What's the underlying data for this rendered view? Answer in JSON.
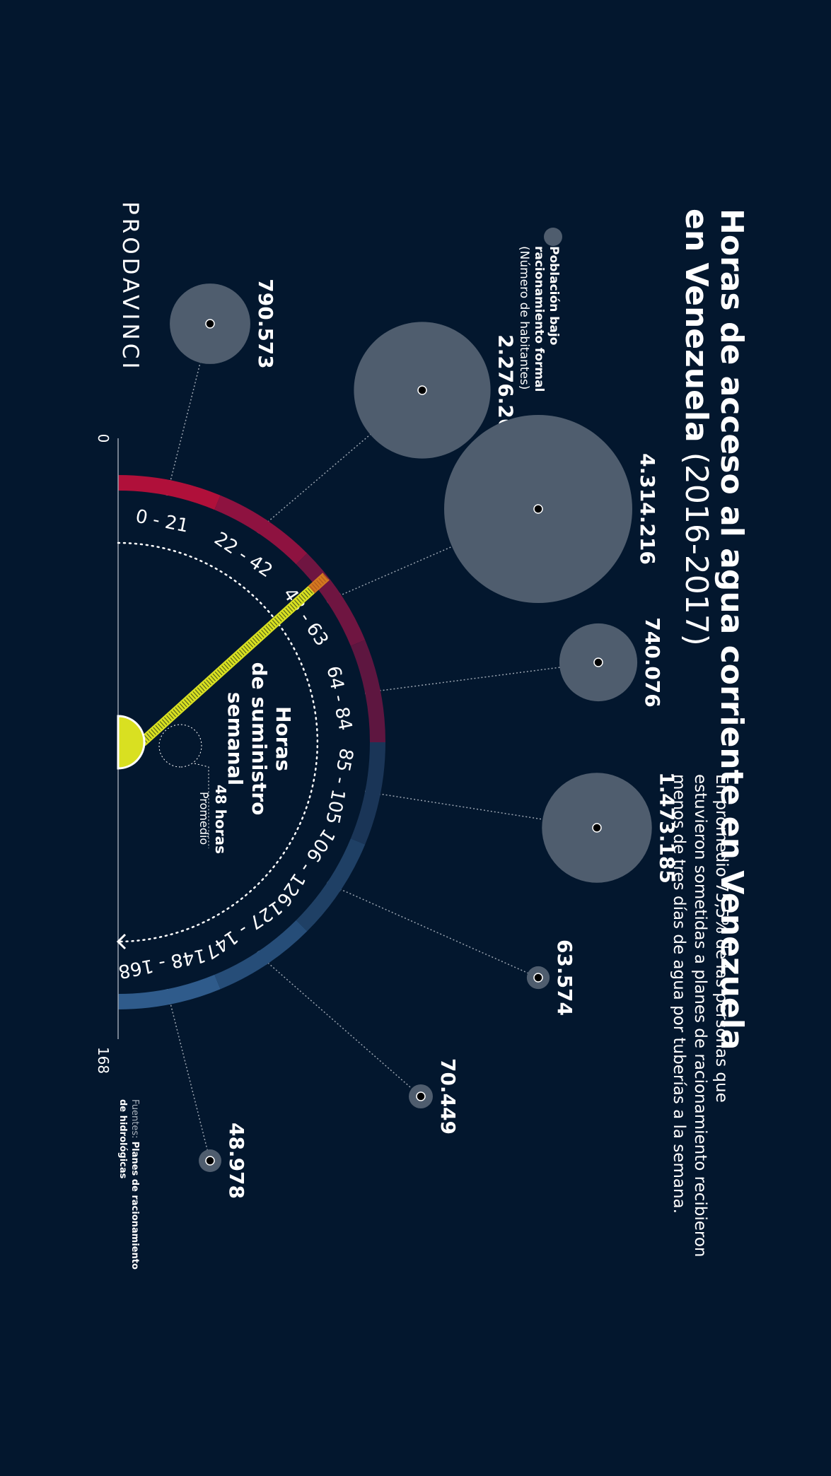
{
  "title_bold": "Horas de acceso al agua corriente en Venezuela",
  "title_years": "(2016-2017)",
  "subtitle": "En promedio 75,5% de las personas que estuvieron sometidas a planes de racionamiento recibieron menos de tres días de agua por tuberías a la semana.",
  "legend": {
    "label_bold_1": "Población bajo",
    "label_bold_2": "racionamiento formal",
    "label_light": "(Número de habitantes)"
  },
  "center_label": [
    "Horas",
    "de suministro",
    "semanal"
  ],
  "average": {
    "value": "48 horas",
    "label": "Promedio",
    "hours": 48
  },
  "axis": {
    "min_label": "0",
    "max_label": "168",
    "min": 0,
    "max": 168
  },
  "brand": "PRODAVINCI",
  "source_prefix": "Fuentes: ",
  "source_text": "Planes de racionamiento de hidrológicas",
  "colors": {
    "background": "#03172e",
    "bubble": "#4f5d6e",
    "needle": "#d9e021",
    "red_segments": [
      "#b0103a",
      "#8e1240",
      "#6f1541",
      "#5e1640"
    ],
    "blue_segments": [
      "#1a3557",
      "#1f4065",
      "#264d78",
      "#2f5b8b"
    ]
  },
  "chart_data": {
    "type": "radial-bubble",
    "unit": "habitantes",
    "categories": [
      "0 - 21",
      "22 - 42",
      "43 - 63",
      "64 - 84",
      "85 - 105",
      "106 - 126",
      "127 - 147",
      "148 - 168"
    ],
    "values": [
      790573,
      2276265,
      4314216,
      740076,
      1473185,
      63574,
      70449,
      48978
    ],
    "value_labels": [
      "790.573",
      "2.276.265",
      "4.314.216",
      "740.076",
      "1.473.185",
      "63.574",
      "70.449",
      "48.978"
    ],
    "axis_range": [
      0,
      168
    ],
    "average_hours": 48
  }
}
